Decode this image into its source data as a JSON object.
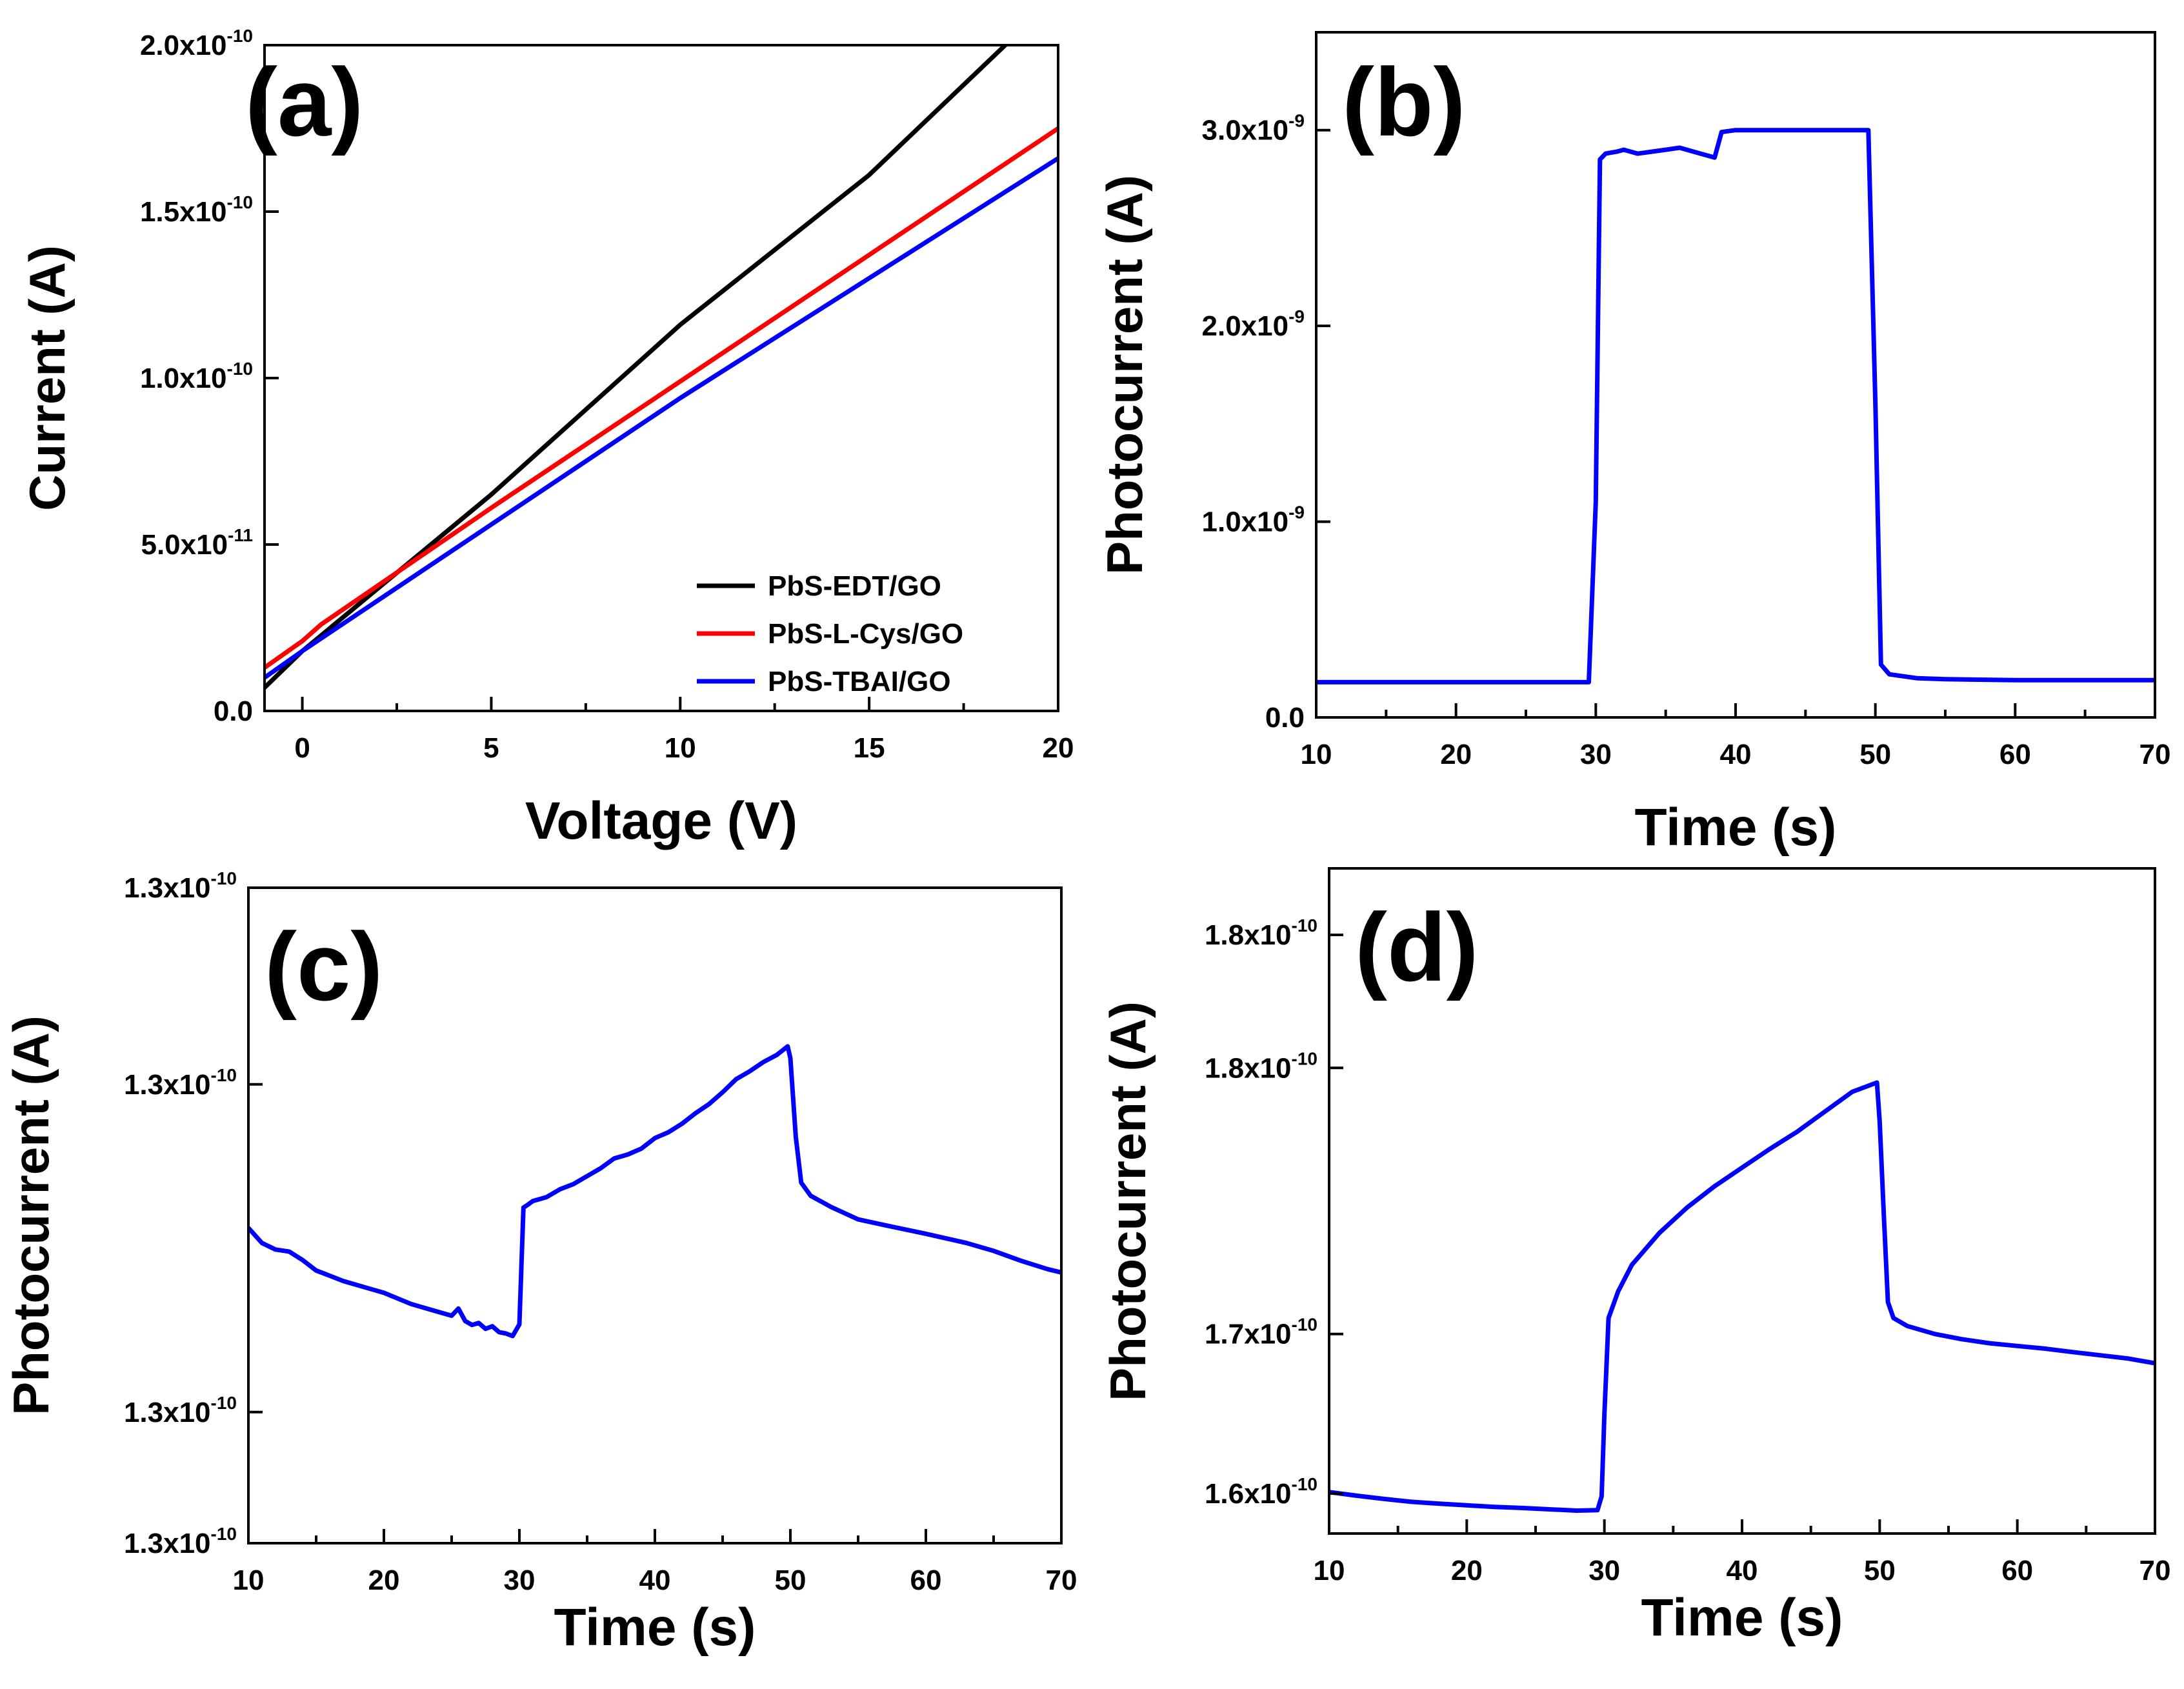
{
  "chart_data": [
    {
      "panel": "(a)",
      "type": "line",
      "title": "",
      "xlabel": "Voltage (V)",
      "ylabel": "Current (A)",
      "xlim": [
        -1,
        20
      ],
      "ylim": [
        0,
        2e-10
      ],
      "xticks": [
        0,
        5,
        10,
        15,
        20
      ],
      "xtick_labels": [
        "0",
        "5",
        "10",
        "15",
        "20"
      ],
      "yticks": [
        0,
        5e-11,
        1e-10,
        1.5e-10,
        2e-10
      ],
      "ytick_labels": [
        {
          "mantissa": "0.0",
          "exp": ""
        },
        {
          "mantissa": "5.0x10",
          "exp": "-11"
        },
        {
          "mantissa": "1.0x10",
          "exp": "-10"
        },
        {
          "mantissa": "1.5x10",
          "exp": "-10"
        },
        {
          "mantissa": "2.0x10",
          "exp": "-10"
        }
      ],
      "legend_position": "bottom-right",
      "series": [
        {
          "name": "PbS-EDT/GO",
          "color": "#000000",
          "x": [
            -1,
            0,
            5,
            10,
            15,
            18.6
          ],
          "y": [
            7e-12,
            1.8e-11,
            6.5e-11,
            1.16e-10,
            1.61e-10,
            2e-10
          ]
        },
        {
          "name": "PbS-L-Cys/GO",
          "color": "#ff0000",
          "x": [
            -1,
            0,
            0.5,
            5,
            10,
            15,
            20
          ],
          "y": [
            1.3e-11,
            2.1e-11,
            2.6e-11,
            6.1e-11,
            9.9e-11,
            1.37e-10,
            1.75e-10
          ]
        },
        {
          "name": "PbS-TBAI/GO",
          "color": "#0000ff",
          "x": [
            -1,
            0,
            5,
            10,
            15,
            20
          ],
          "y": [
            1e-11,
            1.8e-11,
            5.6e-11,
            9.4e-11,
            1.3e-10,
            1.66e-10
          ]
        }
      ]
    },
    {
      "panel": "(b)",
      "type": "line",
      "title": "",
      "xlabel": "Time (s)",
      "ylabel": "Photocurrent (A)",
      "xlim": [
        10,
        70
      ],
      "ylim": [
        0,
        3.5e-09
      ],
      "xticks": [
        10,
        20,
        30,
        40,
        50,
        60,
        70
      ],
      "xtick_labels": [
        "10",
        "20",
        "30",
        "40",
        "50",
        "60",
        "70"
      ],
      "yticks": [
        0,
        1e-09,
        2e-09,
        3e-09
      ],
      "ytick_labels": [
        {
          "mantissa": "0.0",
          "exp": ""
        },
        {
          "mantissa": "1.0x10",
          "exp": "-9"
        },
        {
          "mantissa": "2.0x10",
          "exp": "-9"
        },
        {
          "mantissa": "3.0x10",
          "exp": "-9"
        }
      ],
      "series": [
        {
          "name": "",
          "color": "#0000ff",
          "x": [
            10,
            20,
            29.5,
            30,
            30.3,
            30.7,
            31.5,
            32,
            33,
            34,
            35,
            36,
            37,
            38.5,
            39,
            40,
            45,
            49.5,
            50,
            50.4,
            51,
            53,
            55,
            60,
            70
          ],
          "y": [
            1.8e-10,
            1.8e-10,
            1.8e-10,
            1.1e-09,
            2.85e-09,
            2.88e-09,
            2.89e-09,
            2.9e-09,
            2.88e-09,
            2.89e-09,
            2.9e-09,
            2.91e-09,
            2.89e-09,
            2.86e-09,
            2.99e-09,
            3e-09,
            3e-09,
            3e-09,
            1.6e-09,
            2.7e-10,
            2.2e-10,
            2e-10,
            1.95e-10,
            1.9e-10,
            1.9e-10
          ]
        }
      ]
    },
    {
      "panel": "(c)",
      "type": "line",
      "title": "",
      "xlabel": "Time (s)",
      "ylabel": "Photocurrent (A)",
      "xlim": [
        10,
        70
      ],
      "ylim": [
        1.2955e-10,
        1.3055e-10
      ],
      "xticks": [
        10,
        20,
        30,
        40,
        50,
        60,
        70
      ],
      "xtick_labels": [
        "10",
        "20",
        "30",
        "40",
        "50",
        "60",
        "70"
      ],
      "yticks": [
        1.2955e-10,
        1.2975e-10,
        1.3025e-10,
        1.3055e-10
      ],
      "ytick_labels": [
        {
          "mantissa": "1.3x10",
          "exp": "-10"
        },
        {
          "mantissa": "1.3x10",
          "exp": "-10"
        },
        {
          "mantissa": "1.3x10",
          "exp": "-10"
        },
        {
          "mantissa": "1.3x10",
          "exp": "-10"
        }
      ],
      "series": [
        {
          "name": "",
          "color": "#0000ff",
          "x": [
            10,
            11,
            12,
            13,
            14,
            15,
            17,
            19,
            20,
            22,
            24,
            25,
            25.5,
            26,
            26.5,
            27,
            27.5,
            28,
            28.5,
            29,
            29.5,
            30,
            30.3,
            30.6,
            31,
            32,
            33,
            34,
            35,
            36,
            37,
            38,
            39,
            40,
            41,
            42,
            43,
            44,
            45,
            46,
            47,
            48,
            49,
            49.8,
            50,
            50.4,
            50.8,
            51.5,
            53,
            55,
            57,
            60,
            63,
            65,
            67,
            69,
            70
          ],
          "y": [
            1.30031e-10,
            1.30008e-10,
            1.29998e-10,
            1.29995e-10,
            1.29982e-10,
            1.29966e-10,
            1.2995e-10,
            1.29938e-10,
            1.29932e-10,
            1.29915e-10,
            1.29903e-10,
            1.29897e-10,
            1.29908e-10,
            1.29889e-10,
            1.29883e-10,
            1.29886e-10,
            1.29877e-10,
            1.29881e-10,
            1.29872e-10,
            1.2987e-10,
            1.29866e-10,
            1.29884e-10,
            1.30062e-10,
            1.30066e-10,
            1.30072e-10,
            1.30078e-10,
            1.3009e-10,
            1.30098e-10,
            1.3011e-10,
            1.30122e-10,
            1.30137e-10,
            1.30143e-10,
            1.30152e-10,
            1.30168e-10,
            1.30177e-10,
            1.3019e-10,
            1.30206e-10,
            1.3022e-10,
            1.30238e-10,
            1.30258e-10,
            1.3027e-10,
            1.30284e-10,
            1.30295e-10,
            1.30308e-10,
            1.3029e-10,
            1.3017e-10,
            1.301e-10,
            1.3008e-10,
            1.30063e-10,
            1.30044e-10,
            1.30035e-10,
            1.30022e-10,
            1.30008e-10,
            1.29996e-10,
            1.29981e-10,
            1.29968e-10,
            1.29963e-10
          ]
        }
      ]
    },
    {
      "panel": "(d)",
      "type": "line",
      "title": "",
      "xlabel": "Time (s)",
      "ylabel": "Photocurrent (A)",
      "xlim": [
        10,
        70
      ],
      "ylim": [
        1.575e-10,
        1.825e-10
      ],
      "xticks": [
        10,
        20,
        30,
        40,
        50,
        60,
        70
      ],
      "xtick_labels": [
        "10",
        "20",
        "30",
        "40",
        "50",
        "60",
        "70"
      ],
      "yticks": [
        1.59e-10,
        1.65e-10,
        1.75e-10,
        1.8e-10
      ],
      "ytick_labels": [
        {
          "mantissa": "1.6x10",
          "exp": "-10"
        },
        {
          "mantissa": "1.7x10",
          "exp": "-10"
        },
        {
          "mantissa": "1.8x10",
          "exp": "-10"
        },
        {
          "mantissa": "1.8x10",
          "exp": "-10"
        }
      ],
      "series": [
        {
          "name": "",
          "color": "#0000ff",
          "x": [
            10,
            12,
            14,
            16,
            18,
            20,
            22,
            24,
            26,
            28,
            29.5,
            29.8,
            30,
            30.3,
            31,
            32,
            34,
            36,
            38,
            40,
            42,
            44,
            46,
            48,
            49.8,
            50,
            50.3,
            50.6,
            51,
            52,
            54,
            56,
            58,
            60,
            62,
            64,
            66,
            68,
            70
          ],
          "y": [
            1.5906e-10,
            1.5892e-10,
            1.588e-10,
            1.5869e-10,
            1.5862e-10,
            1.5856e-10,
            1.585e-10,
            1.5846e-10,
            1.5841e-10,
            1.5836e-10,
            1.5838e-10,
            1.589e-10,
            1.62e-10,
            1.656e-10,
            1.666e-10,
            1.676e-10,
            1.688e-10,
            1.6975e-10,
            1.7055e-10,
            1.7125e-10,
            1.7195e-10,
            1.726e-10,
            1.7335e-10,
            1.741e-10,
            1.7445e-10,
            1.73e-10,
            1.695e-10,
            1.662e-10,
            1.656e-10,
            1.653e-10,
            1.65e-10,
            1.648e-10,
            1.6465e-10,
            1.6455e-10,
            1.6445e-10,
            1.6432e-10,
            1.642e-10,
            1.6408e-10,
            1.639e-10
          ]
        }
      ]
    }
  ]
}
